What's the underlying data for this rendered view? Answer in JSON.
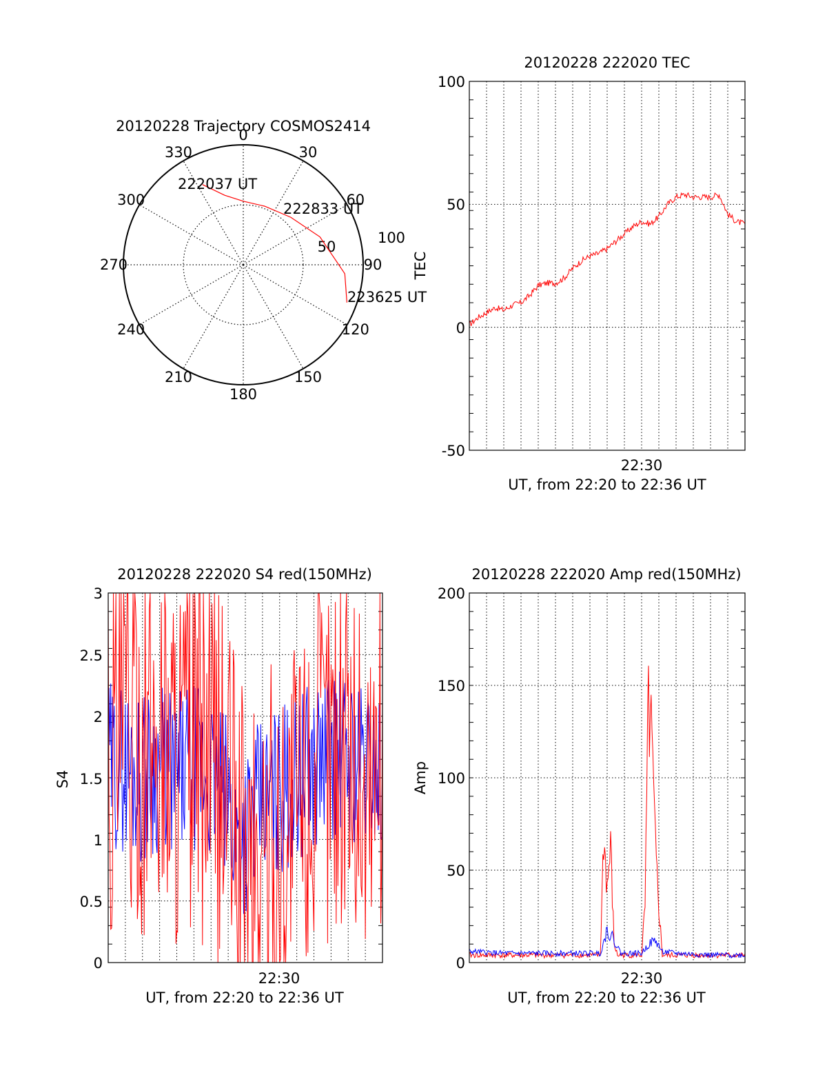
{
  "colors": {
    "red": "#ff0000",
    "blue": "#0000ff",
    "axis": "#000000"
  },
  "trajectory": {
    "title": "20120228 Trajectory COSMOS2414",
    "azimuth_labels": [
      "0",
      "30",
      "60",
      "90",
      "120",
      "150",
      "180",
      "210",
      "240",
      "270",
      "300",
      "330"
    ],
    "radial_labels": [
      "50",
      "100"
    ],
    "time_labels": [
      "222037 UT",
      "222833 UT",
      "223625 UT"
    ],
    "chart_data": {
      "type": "polar",
      "title": "20120228 Trajectory COSMOS2414",
      "r_rings": [
        50,
        100
      ],
      "azimuth_step_deg": 30,
      "track": [
        {
          "az": 333,
          "zenith": 75,
          "label": "222037 UT"
        },
        {
          "az": 345,
          "zenith": 60
        },
        {
          "az": 0,
          "zenith": 53
        },
        {
          "az": 20,
          "zenith": 52
        },
        {
          "az": 45,
          "zenith": 56,
          "label": "222833 UT"
        },
        {
          "az": 70,
          "zenith": 68
        },
        {
          "az": 95,
          "zenith": 85
        },
        {
          "az": 110,
          "zenith": 92,
          "label": "223625 UT"
        }
      ]
    }
  },
  "tec": {
    "title": "20120228 222020 TEC",
    "ylabel": "TEC",
    "xlabel": "UT, from 22:20 to 22:36 UT",
    "xtick": "22:30",
    "yticks": [
      "100",
      "50",
      "0",
      "-50"
    ],
    "chart_data": {
      "type": "line",
      "xlim": [
        0,
        16
      ],
      "ylim": [
        -50,
        100
      ],
      "xunit": "minutes after 22:20",
      "series": [
        {
          "color": "red",
          "x": [
            0,
            0.5,
            1,
            1.5,
            2,
            2.5,
            3,
            3.5,
            4,
            4.5,
            5,
            5.5,
            6,
            6.5,
            7,
            7.5,
            8,
            8.5,
            9,
            9.5,
            10,
            10.5,
            11,
            11.5,
            12,
            12.5,
            13,
            13.5,
            14,
            14.5,
            15,
            15.5,
            16
          ],
          "y": [
            1,
            4,
            6,
            8,
            7,
            9,
            10,
            13,
            17,
            18,
            18,
            20,
            24,
            27,
            29,
            30,
            32,
            35,
            38,
            41,
            43,
            42,
            45,
            50,
            53,
            54,
            53,
            53,
            53,
            54,
            46,
            43,
            42
          ]
        }
      ]
    }
  },
  "s4": {
    "title": "20120228 222020 S4 red(150MHz)",
    "ylabel": "S4",
    "xlabel": "UT, from 22:20 to 22:36 UT",
    "xtick": "22:30",
    "yticks": [
      "3",
      "2.5",
      "2",
      "1.5",
      "1",
      "0.5",
      "0"
    ],
    "chart_data": {
      "type": "line",
      "xlim": [
        0,
        16
      ],
      "ylim": [
        0,
        3
      ],
      "xunit": "minutes after 22:20",
      "series": [
        {
          "color": "blue",
          "x": [
            0,
            1,
            2,
            3,
            4,
            5,
            6,
            7,
            7.5,
            8,
            8.5,
            9,
            10,
            11,
            12,
            13,
            14,
            15,
            16
          ],
          "y": [
            1.6,
            1.6,
            1.5,
            1.6,
            1.5,
            1.6,
            1.5,
            1.3,
            1.0,
            1.1,
            1.2,
            1.3,
            1.4,
            1.5,
            1.6,
            1.7,
            1.7,
            1.6,
            1.6
          ]
        },
        {
          "color": "red",
          "x": [
            0,
            1,
            2,
            3,
            4,
            5,
            6,
            7,
            8,
            9,
            10,
            11,
            12,
            13,
            14,
            15,
            16
          ],
          "y": [
            1.7,
            1.9,
            1.8,
            1.9,
            1.7,
            1.8,
            1.6,
            1.4,
            0.6,
            0.8,
            0.9,
            1.3,
            1.5,
            1.8,
            1.9,
            1.3,
            1.8
          ]
        }
      ]
    }
  },
  "amp": {
    "title": "20120228 222020 Amp red(150MHz)",
    "ylabel": "Amp",
    "xlabel": "UT, from 22:20 to 22:36 UT",
    "xtick": "22:30",
    "yticks": [
      "200",
      "150",
      "100",
      "50",
      "0"
    ],
    "chart_data": {
      "type": "line",
      "xlim": [
        0,
        16
      ],
      "ylim": [
        0,
        200
      ],
      "xunit": "minutes after 22:20",
      "series": [
        {
          "color": "red",
          "x": [
            0,
            7.6,
            7.8,
            8.0,
            8.2,
            8.4,
            8.6,
            8.8,
            10.0,
            10.2,
            10.4,
            10.6,
            10.8,
            11.0,
            11.2,
            16
          ],
          "y": [
            4,
            4,
            68,
            40,
            62,
            10,
            4,
            4,
            4,
            30,
            140,
            112,
            60,
            30,
            4,
            4
          ]
        },
        {
          "color": "blue",
          "x": [
            0,
            2,
            4,
            6,
            7.6,
            8.0,
            8.4,
            8.8,
            10.0,
            10.4,
            10.8,
            11.2,
            12,
            14,
            16
          ],
          "y": [
            6,
            5,
            5,
            5,
            5,
            18,
            12,
            5,
            5,
            10,
            12,
            6,
            5,
            4,
            4
          ]
        }
      ]
    }
  }
}
